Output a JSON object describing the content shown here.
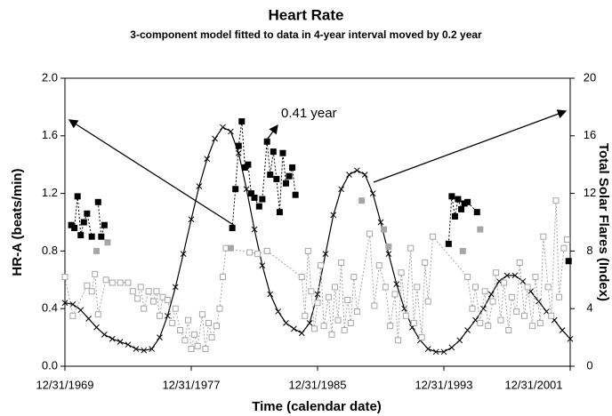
{
  "chart_data": {
    "type": "line",
    "title": "Heart Rate",
    "subtitle": "3-component model fitted to data in 4-year interval moved by 0.2 year",
    "xlabel": "Time (calendar date)",
    "ylabel": "HR-A (beats/min)",
    "y2label": "Total Solar Flares (Index)",
    "annotation": "0.41 year",
    "xlim": [
      1970,
      2002
    ],
    "xticks": [
      {
        "value": 1970,
        "label": "12/31/1969"
      },
      {
        "value": 1978,
        "label": "12/31/1977"
      },
      {
        "value": 1986,
        "label": "12/31/1985"
      },
      {
        "value": 1994,
        "label": "12/31/1993"
      },
      {
        "value": 2002,
        "label": "12/31/2001"
      }
    ],
    "ylim": [
      0,
      2
    ],
    "yticks": [
      {
        "value": 0,
        "label": "0.0"
      },
      0.4,
      0.8,
      1.2,
      1.6,
      {
        "value": 2,
        "label": "2.0"
      }
    ],
    "y2lim": [
      0,
      20
    ],
    "y2ticks": [
      0,
      4,
      8,
      12,
      16,
      20
    ],
    "series": [
      {
        "color": "#000000",
        "axis": "y2",
        "marker": "x",
        "line": "solid",
        "x": [
          1970,
          1970.5,
          1971,
          1971.5,
          1972,
          1972.5,
          1973,
          1973.5,
          1974,
          1974.5,
          1975,
          1975.5,
          1976,
          1976.5,
          1977,
          1977.5,
          1978,
          1978.5,
          1979,
          1979.5,
          1980,
          1980.5,
          1981,
          1981.5,
          1982,
          1982.5,
          1983,
          1983.5,
          1984,
          1984.5,
          1985,
          1985.5,
          1986,
          1986.5,
          1987,
          1987.5,
          1988,
          1988.5,
          1989,
          1989.5,
          1990,
          1990.5,
          1991,
          1991.5,
          1992,
          1992.5,
          1993,
          1993.5,
          1994,
          1994.5,
          1995,
          1995.5,
          1996,
          1996.5,
          1997,
          1997.5,
          1998,
          1998.5,
          1999,
          1999.5,
          2000,
          2000.5,
          2001,
          2001.5,
          2002
        ],
        "values": [
          4.4,
          4.3,
          3.9,
          3.3,
          2.7,
          2.2,
          1.9,
          1.7,
          1.5,
          1.2,
          1.1,
          1.2,
          2.0,
          3.5,
          5.5,
          7.8,
          10.2,
          12.5,
          14.4,
          15.8,
          16.6,
          16.3,
          14.8,
          12.3,
          9.5,
          7.0,
          5.0,
          3.8,
          3.0,
          2.6,
          2.3,
          3.0,
          5.0,
          7.8,
          10.5,
          12.3,
          13.3,
          13.6,
          13.3,
          12.0,
          10.0,
          7.8,
          5.7,
          4.0,
          2.7,
          1.8,
          1.2,
          1.0,
          1.0,
          1.3,
          1.8,
          2.5,
          3.2,
          4.0,
          5.0,
          5.9,
          6.3,
          6.3,
          5.9,
          5.2,
          4.5,
          3.8,
          3.2,
          2.5,
          1.9
        ]
      },
      {
        "color": "#000000",
        "axis": "y",
        "marker": "square-filled",
        "line": "dashed",
        "x": [
          1970.4,
          1970.6,
          1970.8,
          1971.0,
          1971.2,
          1971.4,
          1971.7,
          1971.9,
          1972.1,
          1972.3,
          1972.5,
          1976.0,
          1980.6,
          1980.8,
          1981.0,
          1981.2,
          1981.4,
          1981.6,
          1981.8,
          1982.0,
          1982.3,
          1982.5,
          1982.8,
          1983.0,
          1983.2,
          1983.4,
          1983.6,
          1983.8,
          1984.0,
          1984.2,
          1984.4,
          1984.6,
          1990.0,
          1994.3,
          1994.5,
          1994.7,
          1994.9,
          1995.1,
          1995.3,
          1995.5,
          1996.1,
          1999.0,
          2001.9
        ],
        "values": [
          0.98,
          0.96,
          1.18,
          0.91,
          1.0,
          1.06,
          0.9,
          null,
          1.14,
          0.9,
          0.98,
          null,
          0.96,
          1.23,
          1.53,
          1.7,
          1.38,
          1.4,
          1.2,
          1.17,
          1.11,
          1.16,
          1.56,
          1.33,
          1.49,
          1.3,
          1.07,
          1.48,
          1.27,
          1.32,
          1.38,
          1.19,
          null,
          0.85,
          1.18,
          1.04,
          1.16,
          1.09,
          1.13,
          1.14,
          1.07,
          null,
          0.73
        ]
      },
      {
        "color": "#a6a6a6",
        "axis": "y",
        "marker": "square-open",
        "line": "dashed",
        "x": [
          1970.0,
          1970.5,
          1971.4,
          1971.7,
          1971.9,
          1972.1,
          1972.6,
          1973.0,
          1973.5,
          1974.0,
          1974.3,
          1974.6,
          1974.8,
          1975.0,
          1975.3,
          1975.6,
          1975.8,
          1976.0,
          1976.2,
          1976.5,
          1976.8,
          1977.0,
          1977.3,
          1977.6,
          1977.8,
          1978.0,
          1978.2,
          1978.4,
          1978.7,
          1978.9,
          1979.1,
          1979.3,
          1979.6,
          1979.8,
          1980.0,
          1980.2,
          1981.7,
          1982.2,
          1982.8,
          1985.0,
          1985.2,
          1985.4,
          1985.6,
          1985.8,
          1986.0,
          1986.2,
          1986.4,
          1986.7,
          1986.9,
          1987.1,
          1987.3,
          1987.5,
          1987.7,
          1987.9,
          1988.1,
          1988.3,
          1988.5,
          1989.3,
          1989.6,
          1989.9,
          1990.3,
          1990.6,
          1990.9,
          1991.1,
          1991.3,
          1991.6,
          1991.9,
          1992.1,
          1992.3,
          1992.6,
          1992.8,
          1993.0,
          1993.3,
          1995.5,
          1995.8,
          1996.0,
          1996.3,
          1996.6,
          1996.8,
          1997.1,
          1997.3,
          1997.6,
          1997.8,
          1998.1,
          1998.3,
          1998.6,
          1998.8,
          1999.1,
          1999.3,
          1999.6,
          1999.8,
          2000.1,
          2000.3,
          2000.6,
          2000.8,
          2001.1,
          2001.3,
          2001.6,
          2001.8
        ],
        "values": [
          0.62,
          0.35,
          0.56,
          0.52,
          0.64,
          0.36,
          0.6,
          0.58,
          0.58,
          0.58,
          0.52,
          0.47,
          0.55,
          0.4,
          0.52,
          0.45,
          0.52,
          0.35,
          0.48,
          0.46,
          0.3,
          0.4,
          0.25,
          0.18,
          0.32,
          0.12,
          0.22,
          0.14,
          0.36,
          0.12,
          0.3,
          0.2,
          0.28,
          0.4,
          0.62,
          0.82,
          0.79,
          0.78,
          0.8,
          0.62,
          0.35,
          0.8,
          0.52,
          0.26,
          0.44,
          0.7,
          0.28,
          0.48,
          0.22,
          0.55,
          0.32,
          0.72,
          0.25,
          0.46,
          0.3,
          0.62,
          0.38,
          0.92,
          0.42,
          0.7,
          0.55,
          0.28,
          0.5,
          0.18,
          0.65,
          0.35,
          0.82,
          0.3,
          0.55,
          0.2,
          0.72,
          0.45,
          0.9,
          0.62,
          0.4,
          0.55,
          0.3,
          0.52,
          0.28,
          0.45,
          0.65,
          0.32,
          0.58,
          0.25,
          0.48,
          0.38,
          0.72,
          0.35,
          0.55,
          0.28,
          0.62,
          0.3,
          0.9,
          0.55,
          0.35,
          1.15,
          0.48,
          0.82,
          0.88
        ]
      },
      {
        "color": "#a6a6a6",
        "axis": "y",
        "marker": "square-filled",
        "line": "none",
        "x": [
          1972.0,
          1972.7,
          1980.5,
          1988.8,
          1990.2,
          1990.5,
          1995.2,
          1996.3
        ],
        "values": [
          0.8,
          0.86,
          0.82,
          1.15,
          0.95,
          0.83,
          0.8,
          0.95
        ]
      }
    ]
  }
}
